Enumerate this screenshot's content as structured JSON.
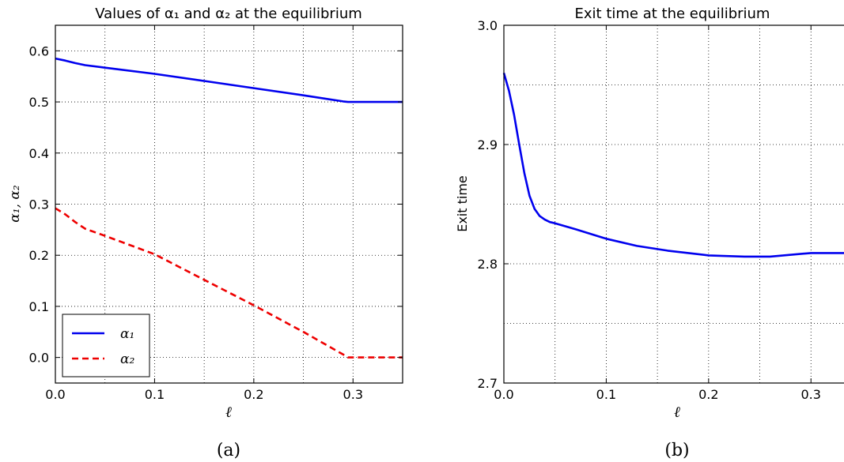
{
  "chart_data": [
    {
      "type": "line",
      "title": "Values of α₁ and α₂ at the equilibrium",
      "xlabel": "ℓ",
      "ylabel": "α₁, α₂",
      "xlim": [
        0.0,
        0.35
      ],
      "ylim": [
        -0.05,
        0.65
      ],
      "xticks": [
        "0.0",
        "0.1",
        "0.2",
        "0.3"
      ],
      "yticks": [
        "0.0",
        "0.1",
        "0.2",
        "0.3",
        "0.4",
        "0.5",
        "0.6"
      ],
      "grid": true,
      "legend": "bottom-left",
      "caption": "(a)",
      "series": [
        {
          "name": "α₁",
          "color": "#0000ee",
          "style": "solid",
          "x": [
            0.0,
            0.01,
            0.02,
            0.03,
            0.05,
            0.1,
            0.15,
            0.2,
            0.25,
            0.29,
            0.295,
            0.35
          ],
          "y": [
            0.585,
            0.581,
            0.576,
            0.572,
            0.567,
            0.555,
            0.541,
            0.527,
            0.513,
            0.501,
            0.5,
            0.5
          ]
        },
        {
          "name": "α₂",
          "color": "#ee0000",
          "style": "dashed",
          "x": [
            0.0,
            0.01,
            0.02,
            0.03,
            0.05,
            0.1,
            0.15,
            0.2,
            0.25,
            0.29,
            0.295,
            0.35
          ],
          "y": [
            0.292,
            0.28,
            0.265,
            0.252,
            0.238,
            0.202,
            0.152,
            0.102,
            0.05,
            0.006,
            0.0,
            0.0
          ]
        }
      ]
    },
    {
      "type": "line",
      "title": "Exit time at the equilibrium",
      "xlabel": "ℓ",
      "ylabel": "Exit time",
      "xlim": [
        0.0,
        0.34
      ],
      "ylim": [
        2.7,
        3.0
      ],
      "xticks": [
        "0.0",
        "0.1",
        "0.2",
        "0.3"
      ],
      "yticks": [
        "2.7",
        "2.8",
        "2.9",
        "3.0"
      ],
      "grid": true,
      "caption": "(b)",
      "series": [
        {
          "color": "#0000ee",
          "style": "solid",
          "x": [
            0.0,
            0.005,
            0.01,
            0.015,
            0.02,
            0.025,
            0.03,
            0.035,
            0.04,
            0.045,
            0.05,
            0.07,
            0.1,
            0.13,
            0.16,
            0.2,
            0.235,
            0.26,
            0.3,
            0.34
          ],
          "y": [
            2.96,
            2.945,
            2.925,
            2.9,
            2.876,
            2.857,
            2.846,
            2.84,
            2.837,
            2.835,
            2.834,
            2.829,
            2.821,
            2.815,
            2.811,
            2.807,
            2.806,
            2.806,
            2.809,
            2.809
          ]
        }
      ]
    }
  ]
}
